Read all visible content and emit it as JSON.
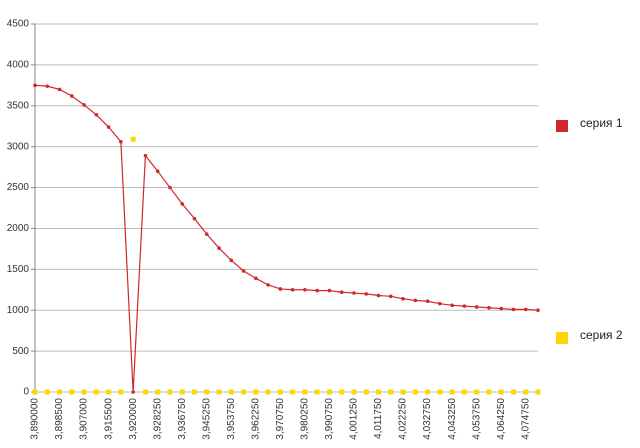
{
  "chart_data": {
    "type": "line",
    "categories": [
      "3,890000",
      null,
      "3,898500",
      null,
      "3,907000",
      null,
      "3,915500",
      null,
      "3,920000",
      null,
      "3,928250",
      null,
      "3,936750",
      null,
      "3,945250",
      null,
      "3,953750",
      null,
      "3,962250",
      null,
      "3,970750",
      null,
      "3,980250",
      null,
      "3,990750",
      null,
      "4,001250",
      null,
      "4,011750",
      null,
      "4,022250",
      null,
      "4,032750",
      null,
      "4,043250",
      null,
      "4,053750",
      null,
      "4,064250",
      null,
      "4,074750",
      null
    ],
    "series": [
      {
        "name": "серия 1",
        "color": "#d0282c",
        "style": "line",
        "values": [
          3750,
          3740,
          3700,
          3620,
          3510,
          3390,
          3240,
          3060,
          0,
          2890,
          2700,
          2500,
          2300,
          2120,
          1930,
          1760,
          1610,
          1480,
          1390,
          1310,
          1260,
          1250,
          1250,
          1240,
          1240,
          1220,
          1210,
          1200,
          1180,
          1170,
          1140,
          1120,
          1110,
          1080,
          1060,
          1050,
          1040,
          1030,
          1020,
          1010,
          1010,
          1000
        ]
      },
      {
        "name": "серия 2",
        "color": "#ffd700",
        "style": "markers",
        "values": [
          0,
          0,
          0,
          0,
          0,
          0,
          0,
          0,
          3090,
          0,
          0,
          0,
          0,
          0,
          0,
          0,
          0,
          0,
          0,
          0,
          0,
          0,
          0,
          0,
          0,
          0,
          0,
          0,
          0,
          0,
          0,
          0,
          0,
          0,
          0,
          0,
          0,
          0,
          0,
          0,
          0,
          0
        ]
      }
    ],
    "ylim": [
      0,
      4500
    ],
    "yticks": [
      0,
      500,
      1000,
      1500,
      2000,
      2500,
      3000,
      3500,
      4000,
      4500
    ],
    "grid": true,
    "legend": "right"
  }
}
